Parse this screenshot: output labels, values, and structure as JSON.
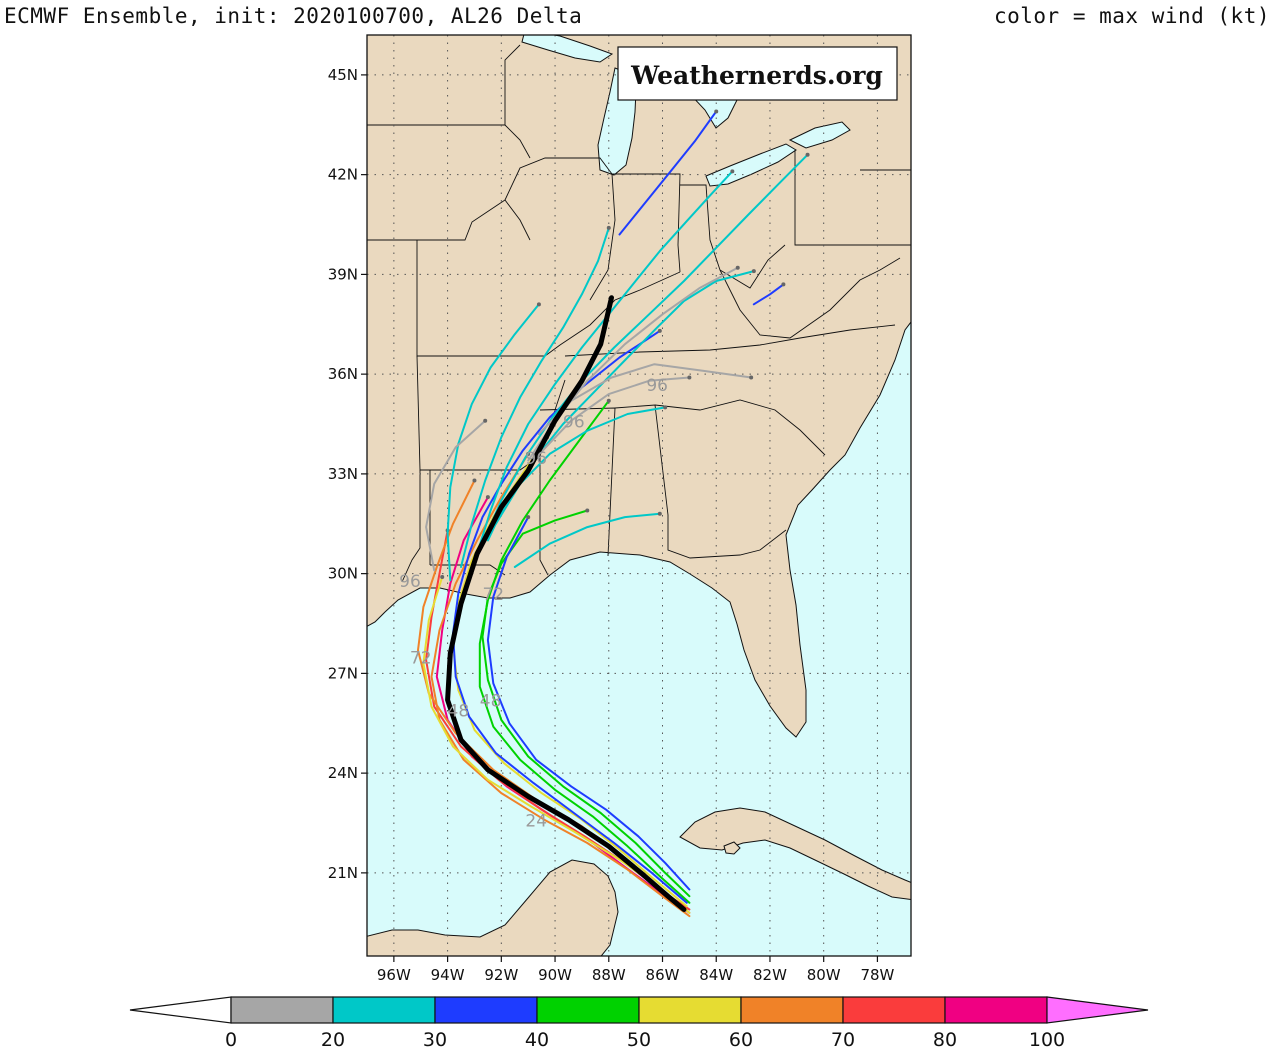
{
  "title": "ECMWF Ensemble, init: 2020100700, AL26 Delta",
  "color_note": "color = max wind (kt)",
  "watermark": "Weathernerds.org",
  "colors": {
    "land": "#ead9bf",
    "ocean": "#d8fbfb",
    "border": "#111111"
  },
  "map": {
    "lon_range": [
      -97,
      -76.75
    ],
    "lat_range": [
      18.5,
      46.2
    ],
    "lat_ticks": [
      {
        "lat": 45,
        "label": "45N"
      },
      {
        "lat": 42,
        "label": "42N"
      },
      {
        "lat": 39,
        "label": "39N"
      },
      {
        "lat": 36,
        "label": "36N"
      },
      {
        "lat": 33,
        "label": "33N"
      },
      {
        "lat": 30,
        "label": "30N"
      },
      {
        "lat": 27,
        "label": "27N"
      },
      {
        "lat": 24,
        "label": "24N"
      },
      {
        "lat": 21,
        "label": "21N"
      }
    ],
    "lon_ticks": [
      {
        "lon": -96,
        "label": "96W"
      },
      {
        "lon": -94,
        "label": "94W"
      },
      {
        "lon": -92,
        "label": "92W"
      },
      {
        "lon": -90,
        "label": "90W"
      },
      {
        "lon": -88,
        "label": "88W"
      },
      {
        "lon": -86,
        "label": "86W"
      },
      {
        "lon": -84,
        "label": "84W"
      },
      {
        "lon": -82,
        "label": "82W"
      },
      {
        "lon": -80,
        "label": "80W"
      },
      {
        "lon": -78,
        "label": "78W"
      }
    ],
    "track_labels": [
      {
        "text": "96",
        "lon": -95.4,
        "lat": 29.6
      },
      {
        "text": "96",
        "lon": -86.2,
        "lat": 35.5
      },
      {
        "text": "96",
        "lon": -89.3,
        "lat": 34.4
      },
      {
        "text": "96",
        "lon": -90.7,
        "lat": 33.3
      },
      {
        "text": "72",
        "lon": -95.0,
        "lat": 27.3
      },
      {
        "text": "72",
        "lon": -92.3,
        "lat": 29.2
      },
      {
        "text": "48",
        "lon": -93.6,
        "lat": 25.7
      },
      {
        "text": "48",
        "lon": -92.4,
        "lat": 26.0
      },
      {
        "text": "24",
        "lon": -90.7,
        "lat": 22.4
      }
    ]
  },
  "tracks": {
    "mean": [
      [
        -85.2,
        19.9
      ],
      [
        -85.8,
        20.3
      ],
      [
        -86.8,
        21.0
      ],
      [
        -88.0,
        21.8
      ],
      [
        -89.5,
        22.6
      ],
      [
        -91.0,
        23.3
      ],
      [
        -92.5,
        24.1
      ],
      [
        -93.5,
        25.0
      ],
      [
        -94.0,
        26.2
      ],
      [
        -93.9,
        27.6
      ],
      [
        -93.5,
        29.1
      ],
      [
        -92.9,
        30.6
      ],
      [
        -92.0,
        32.0
      ],
      [
        -91.0,
        33.1
      ],
      [
        -90.0,
        34.6
      ],
      [
        -89.0,
        35.8
      ],
      [
        -88.3,
        36.9
      ],
      [
        -87.9,
        38.3
      ]
    ],
    "members": [
      {
        "max_wind": 85,
        "points": [
          [
            -85.0,
            19.8
          ],
          [
            -85.9,
            20.3
          ],
          [
            -87.1,
            21.0
          ],
          [
            -88.6,
            21.9
          ],
          [
            -90.3,
            22.8
          ],
          [
            -91.8,
            23.6
          ],
          [
            -93.1,
            24.5
          ],
          [
            -94.0,
            25.6
          ],
          [
            -94.4,
            26.9
          ],
          [
            -94.2,
            28.3
          ],
          [
            -93.9,
            29.7
          ],
          [
            -93.4,
            31.0
          ],
          [
            -92.5,
            32.3
          ]
        ]
      },
      {
        "max_wind": 75,
        "points": [
          [
            -85.0,
            19.9
          ],
          [
            -86.1,
            20.5
          ],
          [
            -87.4,
            21.3
          ],
          [
            -88.9,
            22.1
          ],
          [
            -90.5,
            22.9
          ],
          [
            -92.1,
            23.8
          ],
          [
            -93.5,
            24.8
          ],
          [
            -94.5,
            26.0
          ],
          [
            -94.8,
            27.4
          ],
          [
            -94.6,
            28.7
          ],
          [
            -94.3,
            30.0
          ],
          [
            -94.0,
            31.3
          ]
        ]
      },
      {
        "max_wind": 65,
        "points": [
          [
            -85.1,
            19.9
          ],
          [
            -86.2,
            20.6
          ],
          [
            -87.5,
            21.5
          ],
          [
            -89.0,
            22.4
          ],
          [
            -90.7,
            23.2
          ],
          [
            -92.3,
            24.1
          ],
          [
            -93.7,
            25.2
          ],
          [
            -94.7,
            26.4
          ],
          [
            -95.1,
            27.7
          ],
          [
            -94.9,
            29.0
          ],
          [
            -94.4,
            30.2
          ],
          [
            -93.8,
            31.5
          ],
          [
            -93.0,
            32.8
          ]
        ]
      },
      {
        "max_wind": 65,
        "points": [
          [
            -85.0,
            19.7
          ],
          [
            -86.0,
            20.3
          ],
          [
            -87.3,
            21.1
          ],
          [
            -88.8,
            21.9
          ],
          [
            -90.4,
            22.6
          ],
          [
            -92.0,
            23.4
          ],
          [
            -93.4,
            24.4
          ],
          [
            -94.3,
            25.6
          ],
          [
            -94.6,
            26.9
          ],
          [
            -94.3,
            28.3
          ],
          [
            -93.7,
            29.7
          ],
          [
            -92.9,
            31.0
          ],
          [
            -92.0,
            32.3
          ],
          [
            -91.0,
            33.6
          ]
        ]
      },
      {
        "max_wind": 55,
        "points": [
          [
            -85.1,
            20.0
          ],
          [
            -86.3,
            20.8
          ],
          [
            -87.6,
            21.7
          ],
          [
            -89.0,
            22.6
          ],
          [
            -90.5,
            23.4
          ],
          [
            -91.9,
            24.3
          ],
          [
            -93.0,
            25.3
          ],
          [
            -93.6,
            26.5
          ],
          [
            -93.8,
            27.8
          ],
          [
            -93.6,
            29.1
          ],
          [
            -93.1,
            30.4
          ],
          [
            -92.3,
            31.7
          ],
          [
            -91.3,
            32.9
          ],
          [
            -90.3,
            34.1
          ]
        ]
      },
      {
        "max_wind": 55,
        "points": [
          [
            -85.0,
            19.8
          ],
          [
            -86.2,
            20.6
          ],
          [
            -87.6,
            21.4
          ],
          [
            -89.2,
            22.2
          ],
          [
            -90.9,
            23.0
          ],
          [
            -92.5,
            23.8
          ],
          [
            -93.8,
            24.8
          ],
          [
            -94.6,
            26.0
          ],
          [
            -94.9,
            27.3
          ],
          [
            -94.7,
            28.6
          ],
          [
            -94.2,
            29.9
          ]
        ]
      },
      {
        "max_wind": 45,
        "points": [
          [
            -85.0,
            20.1
          ],
          [
            -86.1,
            20.9
          ],
          [
            -87.3,
            21.8
          ],
          [
            -88.6,
            22.7
          ],
          [
            -90.0,
            23.5
          ],
          [
            -91.3,
            24.4
          ],
          [
            -92.3,
            25.4
          ],
          [
            -92.8,
            26.6
          ],
          [
            -92.8,
            27.9
          ],
          [
            -92.5,
            29.2
          ],
          [
            -92.0,
            30.4
          ],
          [
            -91.2,
            31.6
          ],
          [
            -90.2,
            32.8
          ],
          [
            -89.1,
            34.0
          ],
          [
            -88.0,
            35.2
          ]
        ]
      },
      {
        "max_wind": 45,
        "points": [
          [
            -85.0,
            20.3
          ],
          [
            -85.9,
            21.0
          ],
          [
            -87.0,
            21.9
          ],
          [
            -88.3,
            22.8
          ],
          [
            -89.7,
            23.6
          ],
          [
            -91.0,
            24.5
          ],
          [
            -92.0,
            25.6
          ],
          [
            -92.5,
            26.8
          ],
          [
            -92.7,
            28.1
          ],
          [
            -92.5,
            29.3
          ],
          [
            -92.0,
            30.3
          ],
          [
            -91.2,
            31.2
          ],
          [
            -90.0,
            31.6
          ],
          [
            -88.8,
            31.9
          ]
        ]
      },
      {
        "max_wind": 35,
        "points": [
          [
            -85.0,
            20.5
          ],
          [
            -85.9,
            21.3
          ],
          [
            -86.9,
            22.1
          ],
          [
            -88.1,
            22.9
          ],
          [
            -89.4,
            23.6
          ],
          [
            -90.7,
            24.4
          ],
          [
            -91.7,
            25.5
          ],
          [
            -92.3,
            26.7
          ],
          [
            -92.5,
            28.0
          ],
          [
            -92.3,
            29.3
          ],
          [
            -91.8,
            30.5
          ],
          [
            -91.0,
            31.7
          ]
        ]
      },
      {
        "max_wind": 35,
        "points": [
          [
            -85.1,
            20.1
          ],
          [
            -86.4,
            21.0
          ],
          [
            -87.8,
            21.9
          ],
          [
            -89.3,
            22.8
          ],
          [
            -90.8,
            23.7
          ],
          [
            -92.2,
            24.6
          ],
          [
            -93.2,
            25.7
          ],
          [
            -93.7,
            26.9
          ],
          [
            -93.8,
            28.2
          ],
          [
            -93.6,
            29.4
          ],
          [
            -93.2,
            30.6
          ],
          [
            -92.7,
            31.7
          ],
          [
            -92.0,
            32.7
          ],
          [
            -91.2,
            33.7
          ],
          [
            -90.2,
            34.7
          ],
          [
            -89.0,
            35.6
          ],
          [
            -87.6,
            36.5
          ],
          [
            -86.1,
            37.3
          ]
        ]
      },
      {
        "max_wind": 25,
        "points": [
          [
            -92.9,
            30.6
          ],
          [
            -92.4,
            31.9
          ],
          [
            -91.8,
            33.2
          ],
          [
            -91.0,
            34.5
          ],
          [
            -90.0,
            35.7
          ],
          [
            -89.0,
            36.8
          ],
          [
            -88.0,
            37.8
          ],
          [
            -87.0,
            38.8
          ],
          [
            -86.1,
            39.7
          ],
          [
            -85.1,
            40.6
          ],
          [
            -84.2,
            41.4
          ],
          [
            -83.4,
            42.1
          ]
        ]
      },
      {
        "max_wind": 25,
        "points": [
          [
            -93.5,
            30.2
          ],
          [
            -93.1,
            31.5
          ],
          [
            -92.6,
            32.8
          ],
          [
            -92.0,
            34.1
          ],
          [
            -91.3,
            35.3
          ],
          [
            -90.5,
            36.4
          ],
          [
            -89.7,
            37.4
          ],
          [
            -89.0,
            38.4
          ],
          [
            -88.4,
            39.4
          ],
          [
            -88.0,
            40.4
          ]
        ]
      },
      {
        "max_wind": 25,
        "points": [
          [
            -92.5,
            31.0
          ],
          [
            -91.8,
            32.2
          ],
          [
            -90.8,
            33.4
          ],
          [
            -89.7,
            34.5
          ],
          [
            -88.5,
            35.5
          ],
          [
            -87.3,
            36.5
          ],
          [
            -86.2,
            37.4
          ],
          [
            -85.2,
            38.2
          ],
          [
            -84.0,
            38.8
          ],
          [
            -82.6,
            39.1
          ]
        ]
      },
      {
        "max_wind": 25,
        "points": [
          [
            -93.9,
            29.8
          ],
          [
            -94.0,
            31.2
          ],
          [
            -93.9,
            32.6
          ],
          [
            -93.6,
            33.9
          ],
          [
            -93.1,
            35.1
          ],
          [
            -92.4,
            36.2
          ],
          [
            -91.5,
            37.2
          ],
          [
            -90.6,
            38.1
          ]
        ]
      },
      {
        "max_wind": 25,
        "points": [
          [
            -92.2,
            31.5
          ],
          [
            -91.3,
            32.7
          ],
          [
            -90.2,
            33.6
          ],
          [
            -88.8,
            34.3
          ],
          [
            -87.3,
            34.8
          ],
          [
            -85.9,
            35.0
          ]
        ]
      },
      {
        "max_wind": 25,
        "points": [
          [
            -91.5,
            30.2
          ],
          [
            -90.2,
            30.9
          ],
          [
            -88.8,
            31.4
          ],
          [
            -87.4,
            31.7
          ],
          [
            -86.1,
            31.8
          ]
        ]
      },
      {
        "max_wind": 25,
        "points": [
          [
            -92.7,
            30.9
          ],
          [
            -92.0,
            32.2
          ],
          [
            -91.1,
            33.5
          ],
          [
            -90.1,
            34.7
          ],
          [
            -89.0,
            35.8
          ],
          [
            -87.8,
            36.8
          ],
          [
            -86.5,
            37.8
          ],
          [
            -85.2,
            38.8
          ],
          [
            -84.0,
            39.8
          ],
          [
            -82.8,
            40.8
          ],
          [
            -81.7,
            41.7
          ],
          [
            -80.6,
            42.6
          ]
        ]
      },
      {
        "max_wind": 15,
        "points": [
          [
            -94.5,
            30.1
          ],
          [
            -94.8,
            31.4
          ],
          [
            -94.5,
            32.7
          ],
          [
            -93.7,
            33.8
          ],
          [
            -92.6,
            34.6
          ]
        ]
      },
      {
        "max_wind": 15,
        "points": [
          [
            -91.0,
            33.4
          ],
          [
            -90.0,
            34.6
          ],
          [
            -88.8,
            35.8
          ],
          [
            -87.4,
            36.9
          ],
          [
            -86.0,
            37.8
          ],
          [
            -84.6,
            38.6
          ],
          [
            -83.2,
            39.2
          ]
        ]
      },
      {
        "max_wind": 15,
        "points": [
          [
            -90.6,
            34.2
          ],
          [
            -89.4,
            35.2
          ],
          [
            -87.9,
            35.9
          ],
          [
            -86.3,
            36.3
          ],
          [
            -84.5,
            36.1
          ],
          [
            -82.7,
            35.9
          ]
        ]
      },
      {
        "max_wind": 15,
        "points": [
          [
            -91.8,
            32.2
          ],
          [
            -90.7,
            33.5
          ],
          [
            -89.4,
            34.6
          ],
          [
            -88.0,
            35.4
          ],
          [
            -86.5,
            35.8
          ],
          [
            -85.0,
            35.9
          ]
        ]
      },
      {
        "max_wind": 35,
        "points": [
          [
            -87.6,
            40.2
          ],
          [
            -86.6,
            41.2
          ],
          [
            -85.6,
            42.2
          ],
          [
            -84.8,
            43.0
          ],
          [
            -84.0,
            43.9
          ]
        ]
      },
      {
        "max_wind": 35,
        "points": [
          [
            -82.6,
            38.1
          ],
          [
            -82.0,
            38.4
          ],
          [
            -81.5,
            38.7
          ]
        ]
      }
    ]
  },
  "colorbar": {
    "boundaries": [
      0,
      20,
      30,
      40,
      50,
      60,
      70,
      80,
      100
    ],
    "labels": [
      "0",
      "20",
      "30",
      "40",
      "50",
      "60",
      "70",
      "80",
      "100"
    ],
    "colors": [
      "#a6a6a6",
      "#00c8c8",
      "#1e3cff",
      "#00d200",
      "#e6dc32",
      "#f08228",
      "#fa3c3c",
      "#f00082"
    ],
    "under_color": "#ffffff",
    "over_color": "#ff6eff"
  }
}
